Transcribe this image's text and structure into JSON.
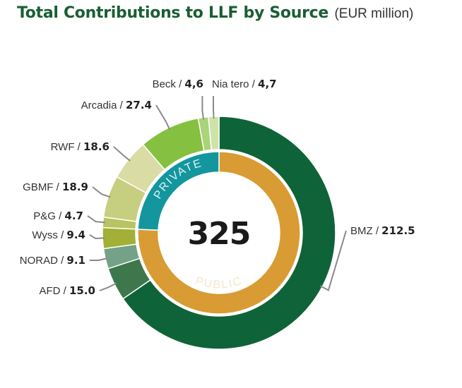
{
  "chart_data": {
    "type": "pie",
    "title": "Total Contributions to LLF by Source",
    "subtitle": "(EUR million)",
    "total_label": "325",
    "outer_ring": [
      {
        "name": "BMZ",
        "value_label": "212.5",
        "value": 212.5,
        "color": "#0f6338"
      },
      {
        "name": "AFD",
        "value_label": "15.0",
        "value": 15.0,
        "color": "#3e774b"
      },
      {
        "name": "NORAD",
        "value_label": "9.1",
        "value": 9.1,
        "color": "#74a187"
      },
      {
        "name": "Wyss",
        "value_label": "9.4",
        "value": 9.4,
        "color": "#a2b036"
      },
      {
        "name": "P&G",
        "value_label": "4.7",
        "value": 4.7,
        "color": "#b7c461"
      },
      {
        "name": "GBMF",
        "value_label": "18.9",
        "value": 18.9,
        "color": "#c6ce7f"
      },
      {
        "name": "RWF",
        "value_label": "18.6",
        "value": 18.6,
        "color": "#dadca6"
      },
      {
        "name": "Arcadia",
        "value_label": "27.4",
        "value": 27.4,
        "color": "#86c040"
      },
      {
        "name": "Beck",
        "value_label": "4,6",
        "value": 4.6,
        "color": "#a9d47a"
      },
      {
        "name": "Nia tero",
        "value_label": "4,7",
        "value": 4.7,
        "color": "#cfe3a8"
      }
    ],
    "inner_ring": [
      {
        "name": "PUBLIC",
        "value": 246.0,
        "color": "#d99b33"
      },
      {
        "name": "PRIVATE",
        "value": 79.0,
        "color": "#13969e"
      }
    ]
  }
}
